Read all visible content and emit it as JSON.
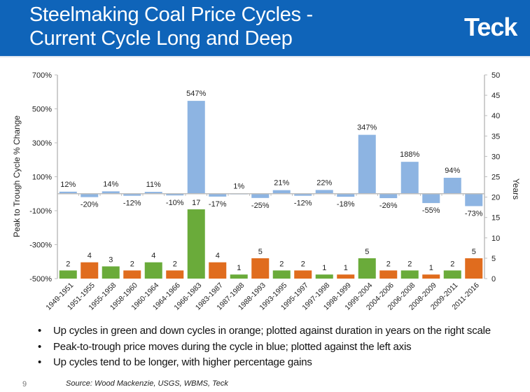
{
  "header": {
    "title_line1": "Steelmaking Coal Price Cycles -",
    "title_line2": "Current Cycle Long and Deep",
    "logo_text": "Teck"
  },
  "colors": {
    "header_bg": "#0f64b9",
    "price_move": "#8db4e2",
    "up_cycle": "#6aab3a",
    "down_cycle": "#e06c1e"
  },
  "chart_data": {
    "type": "bar",
    "title": "",
    "ylabel": "Peak to Trough Cycle % Change",
    "y2label": "Years",
    "ylim": [
      -500,
      700
    ],
    "y2lim": [
      0,
      50
    ],
    "yticks": [
      "700%",
      "500%",
      "300%",
      "100%",
      "-100%",
      "-300%",
      "-500%"
    ],
    "yticks_values": [
      700,
      500,
      300,
      100,
      -100,
      -300,
      -500
    ],
    "y2ticks": [
      "50",
      "45",
      "40",
      "35",
      "30",
      "25",
      "20",
      "15",
      "10",
      "5",
      "0"
    ],
    "y2ticks_values": [
      50,
      45,
      40,
      35,
      30,
      25,
      20,
      15,
      10,
      5,
      0
    ],
    "grid": false,
    "categories": [
      "1949-1951",
      "1951-1955",
      "1955-1958",
      "1958-1960",
      "1960-1964",
      "1964-1966",
      "1966-1983",
      "1983-1987",
      "1987-1988",
      "1988-1993",
      "1993-1995",
      "1995-1997",
      "1997-1998",
      "1998-1999",
      "1999-2004",
      "2004-2006",
      "2006-2008",
      "2008-2009",
      "2009-2011",
      "2011-2016"
    ],
    "series": [
      {
        "name": "Peak-to-trough price move (%)",
        "axis": "left",
        "color": "#8db4e2",
        "values": [
          12,
          -20,
          14,
          -12,
          11,
          -10,
          547,
          -17,
          1,
          -25,
          21,
          -12,
          22,
          -18,
          347,
          -26,
          188,
          -55,
          94,
          -73
        ],
        "labels": [
          "12%",
          "-20%",
          "14%",
          "-12%",
          "11%",
          "-10%",
          "547%",
          "-17%",
          "1%",
          "-25%",
          "21%",
          "-12%",
          "22%",
          "-18%",
          "347%",
          "-26%",
          "188%",
          "-55%",
          "94%",
          "-73%"
        ]
      },
      {
        "name": "Cycle duration (years)",
        "axis": "right",
        "values": [
          2,
          4,
          3,
          2,
          4,
          2,
          17,
          4,
          1,
          5,
          2,
          2,
          1,
          1,
          5,
          2,
          2,
          1,
          2,
          5
        ],
        "labels": [
          "2",
          "4",
          "3",
          "2",
          "4",
          "2",
          "17",
          "4",
          "1",
          "5",
          "2",
          "2",
          "1",
          "1",
          "5",
          "2",
          "2",
          "1",
          "2",
          "5"
        ],
        "cycle_type": [
          "up",
          "down",
          "up",
          "down",
          "up",
          "down",
          "up",
          "down",
          "up",
          "down",
          "up",
          "down",
          "up",
          "down",
          "up",
          "down",
          "up",
          "down",
          "up",
          "down"
        ]
      }
    ],
    "legend": "none"
  },
  "bullets": [
    "Up cycles in green and down cycles in orange; plotted against duration in years on the right scale",
    "Peak-to-trough price moves during the cycle in blue; plotted against the left axis",
    "Up cycles tend to be longer, with higher percentage gains"
  ],
  "bullet_glyph": "•",
  "footer": {
    "page_number": "9",
    "source": "Source: Wood Mackenzie, USGS, WBMS, Teck"
  }
}
